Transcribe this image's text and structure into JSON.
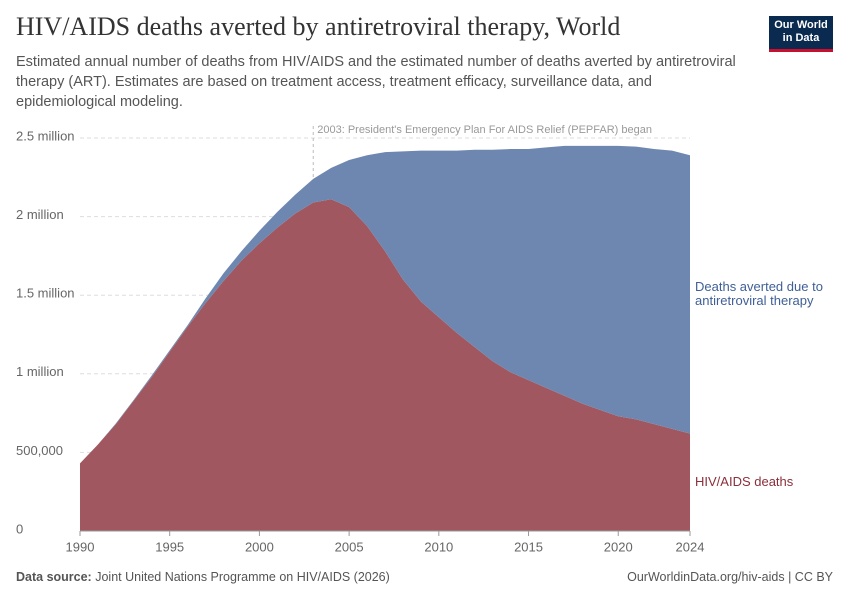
{
  "chart_data": {
    "type": "stacked-area",
    "title": "HIV/AIDS deaths averted by antiretroviral therapy, World",
    "subtitle": "Estimated annual number of deaths from HIV/AIDS and the estimated number of deaths averted by antiretroviral therapy (ART). Estimates are based on treatment access, treatment efficacy, surveillance data, and epidemiological modeling.",
    "logo": "Our World in Data",
    "source_label": "Data source:",
    "source": "Joint United Nations Programme on HIV/AIDS (2026)",
    "url": "OurWorldinData.org/hiv-aids | CC BY",
    "annotation": {
      "text": "2003: President's Emergency Plan For AIDS Relief (PEPFAR) began",
      "x": 2003
    },
    "x": [
      1990,
      1991,
      1992,
      1993,
      1994,
      1995,
      1996,
      1997,
      1998,
      1999,
      2000,
      2001,
      2002,
      2003,
      2004,
      2005,
      2006,
      2007,
      2008,
      2009,
      2010,
      2011,
      2012,
      2013,
      2014,
      2015,
      2016,
      2017,
      2018,
      2019,
      2020,
      2021,
      2022,
      2023,
      2024
    ],
    "series": [
      {
        "name": "HIV/AIDS deaths",
        "color": "#a0575f",
        "values": [
          430000,
          550000,
          680000,
          830000,
          980000,
          1140000,
          1300000,
          1450000,
          1590000,
          1720000,
          1830000,
          1930000,
          2020000,
          2090000,
          2110000,
          2060000,
          1940000,
          1780000,
          1600000,
          1460000,
          1360000,
          1260000,
          1170000,
          1080000,
          1010000,
          960000,
          910000,
          860000,
          810000,
          770000,
          730000,
          710000,
          680000,
          650000,
          620000
        ]
      },
      {
        "name": "Deaths averted due to antiretroviral therapy",
        "color": "#6e87b0",
        "values": [
          0,
          0,
          5000,
          5000,
          10000,
          10000,
          10000,
          30000,
          50000,
          60000,
          80000,
          100000,
          120000,
          150000,
          200000,
          300000,
          450000,
          630000,
          815000,
          960000,
          1060000,
          1160000,
          1255000,
          1345000,
          1420000,
          1470000,
          1530000,
          1590000,
          1640000,
          1680000,
          1720000,
          1735000,
          1750000,
          1770000,
          1770000
        ]
      }
    ],
    "xlim": [
      1990,
      2024
    ],
    "xticks": [
      1990,
      1995,
      2000,
      2005,
      2010,
      2015,
      2020,
      2024
    ],
    "ylim": [
      0,
      2500000
    ],
    "yticks": [
      0,
      {
        "value": 500000,
        "label": "500,000"
      },
      {
        "value": 1000000,
        "label": "1 million"
      },
      {
        "value": 1500000,
        "label": "1.5 million"
      },
      {
        "value": 2000000,
        "label": "2 million"
      },
      {
        "value": 2500000,
        "label": "2.5 million"
      }
    ],
    "grid": true
  }
}
